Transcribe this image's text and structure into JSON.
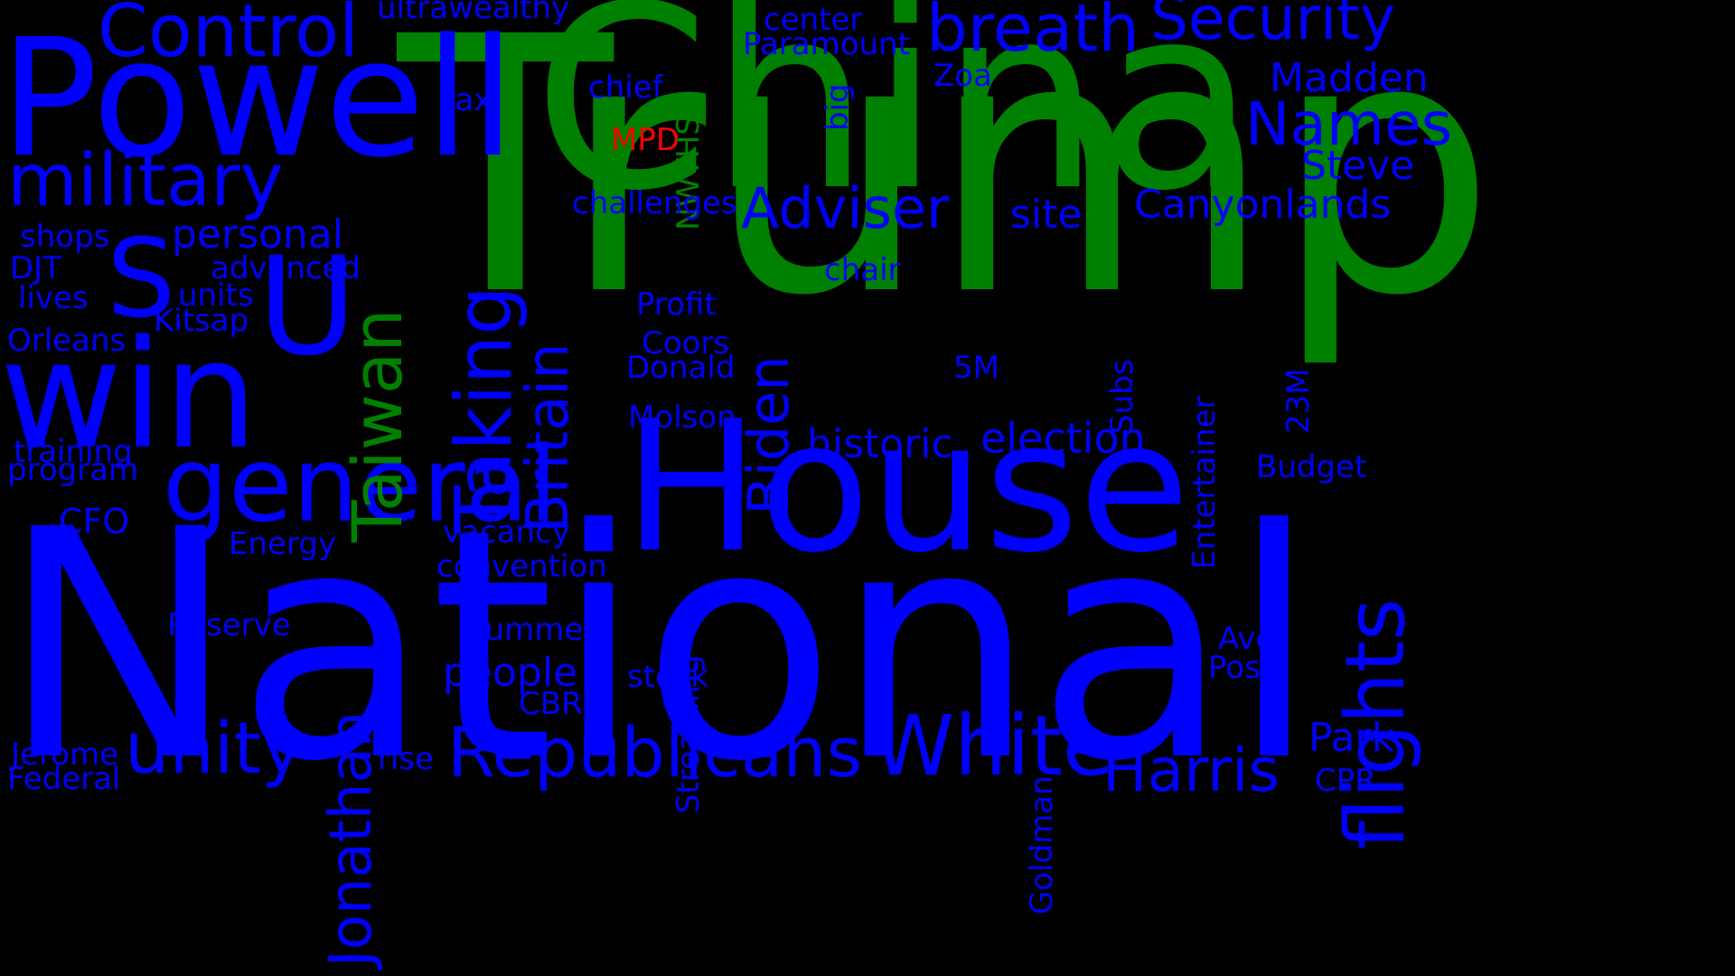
{
  "colors": {
    "background": "#000000",
    "blue": "#0000FF",
    "green": "#008000",
    "red": "#FF0000"
  },
  "words": [
    {
      "text": "Trump",
      "color": "green"
    },
    {
      "text": "National",
      "color": "blue"
    },
    {
      "text": "China",
      "color": "green"
    },
    {
      "text": "House",
      "color": "blue"
    },
    {
      "text": "Powell",
      "color": "blue"
    },
    {
      "text": "win",
      "color": "blue"
    },
    {
      "text": "general",
      "color": "blue"
    },
    {
      "text": "U",
      "color": "blue"
    },
    {
      "text": "S",
      "color": "blue"
    },
    {
      "text": "White",
      "color": "blue"
    },
    {
      "text": "Republicans",
      "color": "blue"
    },
    {
      "text": "unity",
      "color": "blue"
    },
    {
      "text": "flights",
      "color": "blue"
    },
    {
      "text": "Taking",
      "color": "blue"
    },
    {
      "text": "Taiwan",
      "color": "green"
    },
    {
      "text": "military",
      "color": "blue"
    },
    {
      "text": "Control",
      "color": "blue"
    },
    {
      "text": "breath",
      "color": "blue"
    },
    {
      "text": "Security",
      "color": "blue"
    },
    {
      "text": "Harris",
      "color": "blue"
    },
    {
      "text": "Jonathan",
      "color": "blue"
    },
    {
      "text": "Britain",
      "color": "blue"
    },
    {
      "text": "Adviser",
      "color": "blue"
    },
    {
      "text": "Names",
      "color": "blue"
    },
    {
      "text": "Biden",
      "color": "blue"
    },
    {
      "text": "personal",
      "color": "blue"
    },
    {
      "text": "election",
      "color": "blue"
    },
    {
      "text": "historic",
      "color": "blue"
    },
    {
      "text": "Madden",
      "color": "blue"
    },
    {
      "text": "Canyonlands",
      "color": "blue"
    },
    {
      "text": "Steve",
      "color": "blue"
    },
    {
      "text": "people",
      "color": "blue"
    },
    {
      "text": "Park",
      "color": "blue"
    },
    {
      "text": "site",
      "color": "blue"
    },
    {
      "text": "ultrawealthy",
      "color": "blue"
    },
    {
      "text": "center",
      "color": "blue"
    },
    {
      "text": "Paramount",
      "color": "blue"
    },
    {
      "text": "Zoa",
      "color": "blue"
    },
    {
      "text": "chief",
      "color": "blue"
    },
    {
      "text": "tax",
      "color": "blue"
    },
    {
      "text": "big",
      "color": "blue"
    },
    {
      "text": "MPD",
      "color": "red"
    },
    {
      "text": "NWTHS",
      "color": "green"
    },
    {
      "text": "challenges",
      "color": "blue"
    },
    {
      "text": "shops",
      "color": "blue"
    },
    {
      "text": "advanced",
      "color": "blue"
    },
    {
      "text": "DJT",
      "color": "blue"
    },
    {
      "text": "units",
      "color": "blue"
    },
    {
      "text": "lives",
      "color": "blue"
    },
    {
      "text": "chair",
      "color": "blue"
    },
    {
      "text": "Kitsap",
      "color": "blue"
    },
    {
      "text": "Profit",
      "color": "blue"
    },
    {
      "text": "Subs",
      "color": "blue"
    },
    {
      "text": "Entertainer",
      "color": "blue"
    },
    {
      "text": "23M",
      "color": "blue"
    },
    {
      "text": "Orleans",
      "color": "blue"
    },
    {
      "text": "Coors",
      "color": "blue"
    },
    {
      "text": "Donald",
      "color": "blue"
    },
    {
      "text": "5M",
      "color": "blue"
    },
    {
      "text": "Molson",
      "color": "blue"
    },
    {
      "text": "training",
      "color": "blue"
    },
    {
      "text": "program",
      "color": "blue"
    },
    {
      "text": "Budget",
      "color": "blue"
    },
    {
      "text": "CFO",
      "color": "blue"
    },
    {
      "text": "vacancy",
      "color": "blue"
    },
    {
      "text": "Energy",
      "color": "blue"
    },
    {
      "text": "convention",
      "color": "blue"
    },
    {
      "text": "Streaming",
      "color": "blue"
    },
    {
      "text": "Goldman",
      "color": "blue"
    },
    {
      "text": "Reserve",
      "color": "blue"
    },
    {
      "text": "Summer",
      "color": "blue"
    },
    {
      "text": "Ave",
      "color": "blue"
    },
    {
      "text": "Posts",
      "color": "blue"
    },
    {
      "text": "stock",
      "color": "blue"
    },
    {
      "text": "CBRE",
      "color": "blue"
    },
    {
      "text": "Jerome",
      "color": "blue"
    },
    {
      "text": "Federal",
      "color": "blue"
    },
    {
      "text": "rise",
      "color": "blue"
    },
    {
      "text": "CPR",
      "color": "blue"
    }
  ]
}
